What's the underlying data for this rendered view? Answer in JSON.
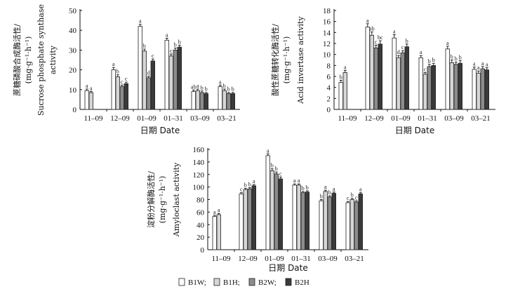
{
  "colors": {
    "B1W": "#ffffff",
    "B1H": "#d6d6d6",
    "B2W": "#8c8c8c",
    "B2H": "#3a3a3a",
    "axis": "#111111"
  },
  "legend": [
    {
      "key": "B1W",
      "label": "B1W;"
    },
    {
      "key": "B1H",
      "label": "B1H;"
    },
    {
      "key": "B2W",
      "label": "B2W;"
    },
    {
      "key": "B2H",
      "label": "B2H"
    }
  ],
  "chart_data": [
    {
      "type": "bar",
      "id": "sps",
      "title": "",
      "ylabel_lines": [
        "蔗糖磷酸合成酶活性/",
        "(mg·g⁻¹·h⁻¹)",
        "Sucrose phosphate synthase",
        "activity"
      ],
      "xlabel": "日期 Date",
      "ylim": [
        0,
        50
      ],
      "yticks": [
        0,
        10,
        20,
        30,
        40,
        50
      ],
      "categories": [
        "11–09",
        "12–09",
        "01–09",
        "01–31",
        "03–09",
        "03–21"
      ],
      "series": [
        {
          "name": "B1W",
          "values": [
            9.5,
            20,
            42,
            35,
            9,
            11.5
          ],
          "errors": [
            0.8,
            1.2,
            1,
            1,
            0.8,
            0.8
          ],
          "labels": [
            "a",
            "a",
            "a",
            "a",
            "ab",
            "a"
          ]
        },
        {
          "name": "B1H",
          "values": [
            8.5,
            16.5,
            29.5,
            27,
            9.5,
            9.5
          ],
          "errors": [
            0.6,
            1,
            1,
            1,
            0.8,
            0.8
          ],
          "labels": [
            "a",
            "b",
            "b",
            "c",
            "a",
            "b"
          ]
        },
        {
          "name": "B2W",
          "values": [
            null,
            11.5,
            16,
            30,
            8.5,
            8
          ],
          "errors": [
            null,
            0.8,
            0.8,
            1,
            0.8,
            0.6
          ],
          "labels": [
            null,
            "c",
            "d",
            "b",
            "b",
            "b"
          ]
        },
        {
          "name": "B2H",
          "values": [
            null,
            13,
            24.5,
            31.5,
            8,
            8
          ],
          "errors": [
            null,
            0.8,
            1,
            1,
            0.6,
            0.6
          ],
          "labels": [
            null,
            "c",
            "c",
            "b",
            "b",
            "b"
          ]
        }
      ]
    },
    {
      "type": "bar",
      "id": "ai",
      "title": "",
      "ylabel_lines": [
        "酸性蔗糖转化酶活性/",
        "(mg·g⁻¹·h⁻¹)",
        "Acid invertase activity"
      ],
      "xlabel": "日期 Date",
      "ylim": [
        0,
        18
      ],
      "yticks": [
        0,
        2,
        4,
        6,
        8,
        10,
        12,
        14,
        16,
        18
      ],
      "categories": [
        "11–09",
        "12–09",
        "01–09",
        "01–31",
        "03–09",
        "03–21"
      ],
      "series": [
        {
          "name": "B1W",
          "values": [
            4.9,
            15,
            13,
            9.4,
            11,
            7.3
          ],
          "errors": [
            0.4,
            0.6,
            0.6,
            0.4,
            0.5,
            0.4
          ],
          "labels": [
            "b",
            "a",
            "a",
            "a",
            "a",
            "a"
          ]
        },
        {
          "name": "B1H",
          "values": [
            6.7,
            13.5,
            9.4,
            6.4,
            8.5,
            6.6
          ],
          "errors": [
            0.4,
            0.6,
            0.4,
            0.3,
            0.5,
            0.4
          ],
          "labels": [
            "a",
            "ab",
            "d",
            "c",
            "b",
            "a"
          ]
        },
        {
          "name": "B2W",
          "values": [
            null,
            11.2,
            10.3,
            7.8,
            8.2,
            7.4
          ],
          "errors": [
            null,
            0.5,
            0.4,
            0.4,
            0.4,
            0.4
          ],
          "labels": [
            null,
            "c",
            "c",
            "b",
            "b",
            "a"
          ]
        },
        {
          "name": "B2H",
          "values": [
            null,
            11.9,
            11.4,
            8,
            8.4,
            7.2
          ],
          "errors": [
            null,
            0.6,
            0.5,
            0.4,
            0.5,
            0.4
          ],
          "labels": [
            null,
            "bc",
            "b",
            "b",
            "b",
            "a"
          ]
        }
      ]
    },
    {
      "type": "bar",
      "id": "amy",
      "title": "",
      "ylabel_lines": [
        "淀粉分解酶活性/",
        "(mg·g⁻¹·h⁻¹)",
        "Amyloclast activity"
      ],
      "xlabel": "日期 Date",
      "ylim": [
        0,
        160
      ],
      "yticks": [
        0,
        20,
        40,
        60,
        80,
        100,
        120,
        140,
        160
      ],
      "categories": [
        "11–09",
        "12–09",
        "01–09",
        "01–31",
        "03–09",
        "03–21"
      ],
      "series": [
        {
          "name": "B1W",
          "values": [
            53,
            89,
            150,
            103,
            78,
            75
          ],
          "errors": [
            2,
            2,
            3,
            2,
            2,
            2
          ],
          "labels": [
            "a",
            "c",
            "a",
            "a",
            "b",
            "c"
          ]
        },
        {
          "name": "B1H",
          "values": [
            56,
            96,
            126,
            103,
            93,
            80
          ],
          "errors": [
            2,
            2,
            3,
            2,
            2,
            2
          ],
          "labels": [
            "a",
            "b",
            "b",
            "a",
            "a",
            "b"
          ]
        },
        {
          "name": "B2W",
          "values": [
            null,
            97,
            121,
            91,
            84,
            76
          ],
          "errors": [
            null,
            2,
            3,
            2,
            2,
            2
          ],
          "labels": [
            null,
            "b",
            "b",
            "b",
            "b",
            "c"
          ]
        },
        {
          "name": "B2H",
          "values": [
            null,
            102,
            113,
            92,
            90,
            89
          ],
          "errors": [
            null,
            2,
            3,
            2,
            2,
            2
          ],
          "labels": [
            null,
            "a",
            "c",
            "b",
            "a",
            "a"
          ]
        }
      ]
    }
  ]
}
